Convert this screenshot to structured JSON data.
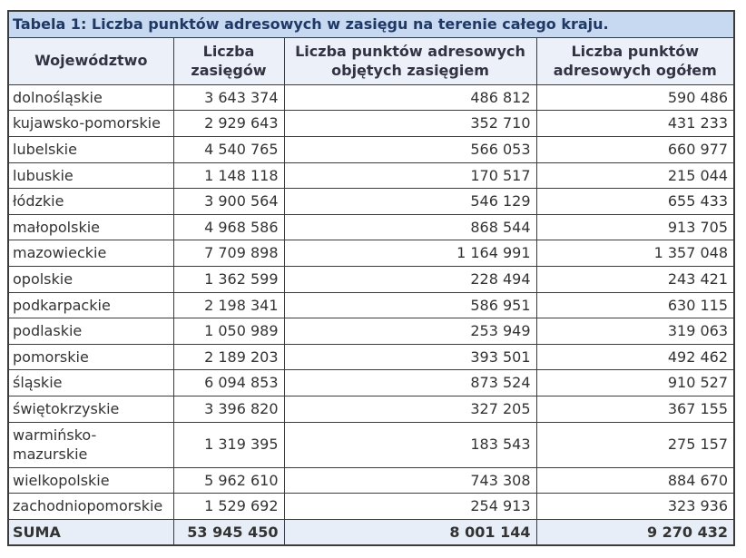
{
  "table": {
    "title": "Tabela 1: Liczba punktów adresowych w zasięgu na terenie całego kraju.",
    "columns": [
      "Województwo",
      "Liczba zasięgów",
      "Liczba punktów adresowych objętych zasięgiem",
      "Liczba punktów adresowych ogółem"
    ],
    "rows": [
      [
        "dolnośląskie",
        "3 643 374",
        "486 812",
        "590 486"
      ],
      [
        "kujawsko-pomorskie",
        "2 929 643",
        "352 710",
        "431 233"
      ],
      [
        "lubelskie",
        "4 540 765",
        "566 053",
        "660 977"
      ],
      [
        "lubuskie",
        "1 148 118",
        "170 517",
        "215 044"
      ],
      [
        "łódzkie",
        "3 900 564",
        "546 129",
        "655 433"
      ],
      [
        "małopolskie",
        "4 968 586",
        "868 544",
        "913 705"
      ],
      [
        "mazowieckie",
        "7 709 898",
        "1 164 991",
        "1 357 048"
      ],
      [
        "opolskie",
        "1 362 599",
        "228 494",
        "243 421"
      ],
      [
        "podkarpackie",
        "2 198 341",
        "586 951",
        "630 115"
      ],
      [
        "podlaskie",
        "1 050 989",
        "253 949",
        "319 063"
      ],
      [
        "pomorskie",
        "2 189 203",
        "393 501",
        "492 462"
      ],
      [
        "śląskie",
        "6 094 853",
        "873 524",
        "910 527"
      ],
      [
        "świętokrzyskie",
        "3 396 820",
        "327 205",
        "367 155"
      ],
      [
        "warmińsko-mazurskie",
        "1 319 395",
        "183 543",
        "275 157"
      ],
      [
        "wielkopolskie",
        "5 962 610",
        "743 308",
        "884 670"
      ],
      [
        "zachodniopomorskie",
        "1 529 692",
        "254 913",
        "323 936"
      ]
    ],
    "total": [
      "SUMA",
      "53 945 450",
      "8 001 144",
      "9 270 432"
    ]
  },
  "colors": {
    "title_bg": "#c6d9f1",
    "title_text": "#1f3864",
    "header_bg": "#ecf1f9",
    "total_bg": "#e8eef8",
    "border": "#3c3c3c",
    "body_text": "#333333"
  }
}
